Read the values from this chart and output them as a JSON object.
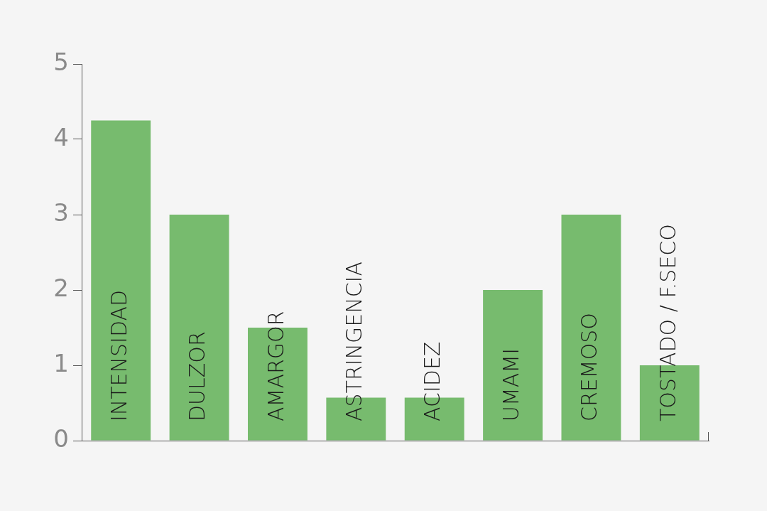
{
  "chart_data": {
    "type": "bar",
    "categories": [
      "INTENSIDAD",
      "DULZOR",
      "AMARGOR",
      "ASTRINGENCIA",
      "ACIDEZ",
      "UMAMI",
      "CREMOSO",
      "TOSTADO / F.SECO"
    ],
    "values": [
      4.25,
      3,
      1.5,
      0.57,
      0.57,
      2,
      3,
      1
    ],
    "color": "#77bb6e",
    "ylim": [
      0,
      5
    ],
    "yticks": [
      0,
      1,
      2,
      3,
      4,
      5
    ],
    "grid": false,
    "legend": false
  }
}
